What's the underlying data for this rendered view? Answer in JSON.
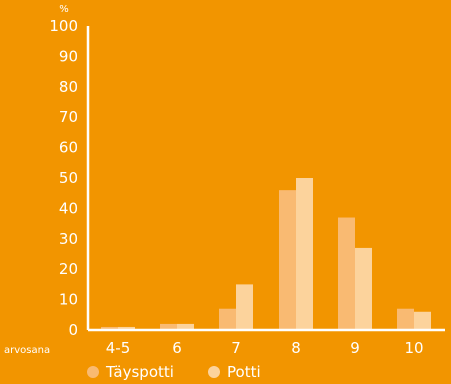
{
  "chart_data": {
    "type": "bar",
    "title": "",
    "ylabel": "%",
    "xlabel": "arvosana",
    "ylim": [
      0,
      100
    ],
    "yticks": [
      0,
      10,
      20,
      30,
      40,
      50,
      60,
      70,
      80,
      90,
      100
    ],
    "categories": [
      "4-5",
      "6",
      "7",
      "8",
      "9",
      "10"
    ],
    "series": [
      {
        "name": "Täyspotti",
        "values": [
          1,
          2,
          7,
          46,
          37,
          7
        ],
        "color": "#F9BA72"
      },
      {
        "name": "Potti",
        "values": [
          1,
          2,
          15,
          50,
          27,
          6
        ],
        "color": "#FCD39C"
      }
    ],
    "legend": "bottom",
    "grid": false,
    "colors": {
      "background": "#F29500",
      "axis": "#FFFFFF",
      "text": "#FFFFFF"
    }
  }
}
